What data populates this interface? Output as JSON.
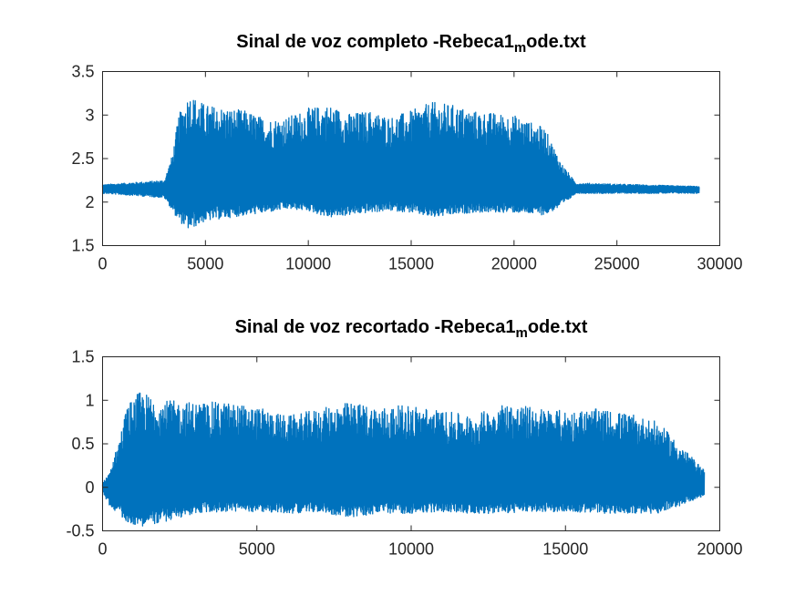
{
  "chart_data": [
    {
      "type": "line",
      "title": "Sinal de voz completo -Rebeca1",
      "title_subscript": "m",
      "title_suffix": "ode.txt",
      "xlim": [
        0,
        30000
      ],
      "ylim": [
        1.5,
        3.5
      ],
      "xticks": [
        0,
        5000,
        10000,
        15000,
        20000,
        25000,
        30000
      ],
      "xtick_labels": [
        "0",
        "5000",
        "10000",
        "15000",
        "20000",
        "25000",
        "30000"
      ],
      "yticks": [
        1.5,
        2,
        2.5,
        3,
        3.5
      ],
      "ytick_labels": [
        "1.5",
        "2",
        "2.5",
        "3",
        "3.5"
      ],
      "color": "#0072bd",
      "baseline": 2.15,
      "n_samples": 29000,
      "envelope": {
        "x": [
          0,
          3000,
          3400,
          3700,
          4200,
          5000,
          7000,
          8000,
          9000,
          10000,
          11000,
          12000,
          13000,
          14000,
          15000,
          16000,
          17000,
          18000,
          20000,
          21500,
          22300,
          23000,
          29000
        ],
        "upper": [
          2.2,
          2.25,
          2.55,
          3.0,
          3.25,
          3.12,
          3.05,
          2.95,
          2.98,
          3.08,
          3.12,
          3.02,
          3.05,
          2.98,
          3.05,
          3.15,
          3.12,
          3.05,
          3.0,
          2.85,
          2.45,
          2.22,
          2.18
        ],
        "lower": [
          2.1,
          2.05,
          1.9,
          1.78,
          1.68,
          1.78,
          1.85,
          1.88,
          1.92,
          1.9,
          1.82,
          1.85,
          1.88,
          1.9,
          1.88,
          1.82,
          1.85,
          1.88,
          1.88,
          1.85,
          1.95,
          2.1,
          2.1
        ]
      }
    },
    {
      "type": "line",
      "title": "Sinal de voz recortado -Rebeca1",
      "title_subscript": "m",
      "title_suffix": "ode.txt",
      "xlim": [
        0,
        20000
      ],
      "ylim": [
        -0.5,
        1.5
      ],
      "xticks": [
        0,
        5000,
        10000,
        15000,
        20000
      ],
      "xtick_labels": [
        "0",
        "5000",
        "10000",
        "15000",
        "20000"
      ],
      "yticks": [
        -0.5,
        0,
        0.5,
        1,
        1.5
      ],
      "ytick_labels": [
        "-0.5",
        "0",
        "0.5",
        "1",
        "1.5"
      ],
      "color": "#0072bd",
      "baseline": 0,
      "n_samples": 19500,
      "envelope": {
        "x": [
          0,
          200,
          500,
          800,
          1200,
          2000,
          3000,
          4000,
          5000,
          6000,
          7000,
          8000,
          9000,
          10000,
          11000,
          12000,
          13000,
          14000,
          15000,
          16000,
          17000,
          18000,
          18800,
          19500
        ],
        "upper": [
          0.05,
          0.15,
          0.5,
          0.95,
          1.1,
          1.0,
          0.98,
          0.98,
          0.92,
          0.82,
          0.9,
          0.98,
          0.92,
          0.95,
          0.88,
          0.82,
          0.97,
          0.92,
          0.88,
          0.9,
          0.85,
          0.75,
          0.45,
          0.2
        ],
        "lower": [
          -0.05,
          -0.2,
          -0.3,
          -0.4,
          -0.45,
          -0.4,
          -0.3,
          -0.28,
          -0.28,
          -0.3,
          -0.28,
          -0.35,
          -0.3,
          -0.3,
          -0.28,
          -0.3,
          -0.3,
          -0.28,
          -0.28,
          -0.3,
          -0.3,
          -0.3,
          -0.2,
          -0.1
        ]
      }
    }
  ]
}
